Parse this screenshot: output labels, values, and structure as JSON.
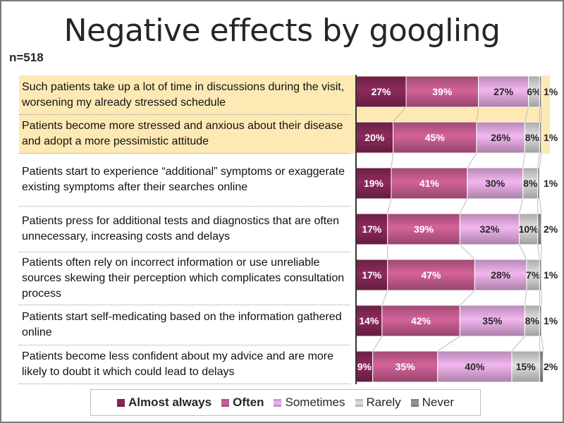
{
  "title": "Negative effects by googling",
  "sample": "n=518",
  "chart_data": {
    "type": "bar",
    "orientation": "horizontal-stacked-100",
    "categories": [
      "Such patients take up a lot of time in discussions during the visit, worsening my already stressed schedule",
      "Patients become more stressed and anxious about their disease and adopt a more pessimistic attitude",
      "Patients start to experience “additional” symptoms or exaggerate existing symptoms after their searches online",
      "Patients press for additional tests and diagnostics that are often unnecessary, increasing costs and delays",
      "Patients often rely on incorrect information or use unreliable sources skewing their perception which complicates consultation process",
      "Patients start self-medicating based on the information gathered online",
      "Patients become less confident about my advice and are more likely to doubt it which could lead to delays"
    ],
    "highlighted_categories": [
      0,
      1
    ],
    "highlight_color": "#fde9b4",
    "series": [
      {
        "name": "Almost always",
        "color": "#8e2a5c",
        "label_color": "#ffffff",
        "bold": true,
        "values": [
          27,
          20,
          19,
          17,
          17,
          14,
          9
        ]
      },
      {
        "name": "Often",
        "color": "#d4639a",
        "label_color": "#ffffff",
        "bold": true,
        "values": [
          39,
          45,
          41,
          39,
          47,
          42,
          35
        ]
      },
      {
        "name": "Sometimes",
        "color": "#f3b6f0",
        "label_color": "#262626",
        "bold": false,
        "values": [
          27,
          26,
          30,
          32,
          28,
          35,
          40
        ]
      },
      {
        "name": "Rarely",
        "color": "#e2e2e2",
        "label_color": "#262626",
        "bold": false,
        "values": [
          6,
          8,
          8,
          10,
          7,
          8,
          15
        ]
      },
      {
        "name": "Never",
        "color": "#9a9a9a",
        "label_color": "#262626",
        "bold": false,
        "values": [
          1,
          1,
          1,
          2,
          1,
          1,
          2
        ]
      }
    ],
    "value_suffix": "%",
    "xlim": [
      0,
      100
    ],
    "legend_position": "bottom"
  }
}
